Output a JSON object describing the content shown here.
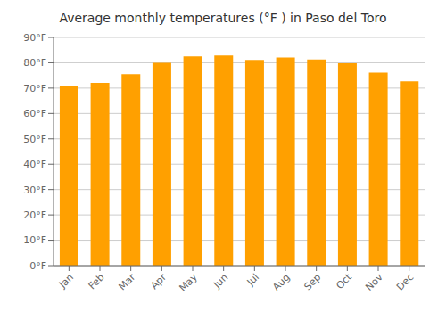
{
  "chart_data": {
    "type": "bar",
    "title": "Average monthly temperatures (°F ) in Paso del Toro",
    "categories": [
      "Jan",
      "Feb",
      "Mar",
      "Apr",
      "May",
      "Jun",
      "Jul",
      "Aug",
      "Sep",
      "Oct",
      "Nov",
      "Dec"
    ],
    "values": [
      70.9,
      72.1,
      75.5,
      80.0,
      82.5,
      82.9,
      81.1,
      82.1,
      81.3,
      79.8,
      76.1,
      72.7
    ],
    "color": "#FFA000",
    "ylim": [
      0,
      90
    ],
    "yticks": [
      {
        "value": 0,
        "label": "0°F"
      },
      {
        "value": 10,
        "label": "10°F"
      },
      {
        "value": 20,
        "label": "20°F"
      },
      {
        "value": 30,
        "label": "30°F"
      },
      {
        "value": 40,
        "label": "40°F"
      },
      {
        "value": 50,
        "label": "50°F"
      },
      {
        "value": 60,
        "label": "60°F"
      },
      {
        "value": 70,
        "label": "70°F"
      },
      {
        "value": 80,
        "label": "80°F"
      },
      {
        "value": 90,
        "label": "90°F"
      }
    ],
    "grid": true
  }
}
